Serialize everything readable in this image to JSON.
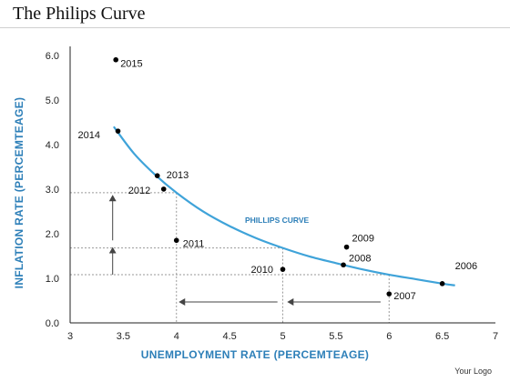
{
  "page": {
    "title": "The Philips Curve",
    "logo_text": "Your Logo"
  },
  "chart_data": {
    "type": "scatter",
    "title": "The Philips Curve",
    "xlabel": "UNEMPLOYMENT RATE (PERCEMTEAGE)",
    "ylabel": "INFLATION RATE (PERCEMTEAGE)",
    "xlim": [
      3,
      7
    ],
    "ylim": [
      0,
      6.2
    ],
    "x_ticks": [
      "3",
      "3.5",
      "4",
      "4.5",
      "5",
      "5.5",
      "6",
      "6.5",
      "7"
    ],
    "x_tick_values": [
      3,
      3.5,
      4,
      4.5,
      5,
      5.5,
      6,
      6.5,
      7
    ],
    "y_ticks": [
      "0.0",
      "1.0",
      "2.0",
      "3.0",
      "4.0",
      "5.0",
      "6.0"
    ],
    "y_tick_values": [
      0,
      1,
      2,
      3,
      4,
      5,
      6
    ],
    "grid": false,
    "points": [
      {
        "label": "2015",
        "x": 3.43,
        "y": 5.9
      },
      {
        "label": "2014",
        "x": 3.45,
        "y": 4.3
      },
      {
        "label": "2013",
        "x": 3.82,
        "y": 3.3
      },
      {
        "label": "2012",
        "x": 3.88,
        "y": 3.0
      },
      {
        "label": "2011",
        "x": 4.0,
        "y": 1.85
      },
      {
        "label": "2010",
        "x": 5.0,
        "y": 1.2
      },
      {
        "label": "2009",
        "x": 5.6,
        "y": 1.7
      },
      {
        "label": "2008",
        "x": 5.57,
        "y": 1.3
      },
      {
        "label": "2007",
        "x": 6.0,
        "y": 0.65
      },
      {
        "label": "2006",
        "x": 6.5,
        "y": 0.88
      }
    ],
    "curve": {
      "name": "PHILLIPS CURVE",
      "color": "#3fa3d9",
      "points": [
        [
          3.41,
          4.4
        ],
        [
          3.6,
          3.8
        ],
        [
          3.8,
          3.32
        ],
        [
          4.0,
          2.92
        ],
        [
          4.25,
          2.5
        ],
        [
          4.5,
          2.17
        ],
        [
          4.75,
          1.9
        ],
        [
          5.0,
          1.68
        ],
        [
          5.25,
          1.49
        ],
        [
          5.5,
          1.34
        ],
        [
          5.75,
          1.2
        ],
        [
          6.0,
          1.08
        ],
        [
          6.25,
          0.98
        ],
        [
          6.5,
          0.88
        ],
        [
          6.62,
          0.84
        ]
      ]
    },
    "guides": {
      "horizontal_levels": [
        2.92,
        1.68,
        1.08
      ],
      "vertical_levels": [
        4.0,
        5.0,
        6.0
      ]
    },
    "arrows": [
      {
        "direction": "up",
        "x": 3.4,
        "from": 1.08,
        "to": 1.68
      },
      {
        "direction": "up",
        "x": 3.4,
        "from": 1.85,
        "to": 2.85
      },
      {
        "direction": "left",
        "y": 0.47,
        "from": 5.92,
        "to": 5.05
      },
      {
        "direction": "left",
        "y": 0.47,
        "from": 4.95,
        "to": 4.03
      }
    ],
    "colors": {
      "axis_title": "#2d7fb8",
      "curve": "#3fa3d9",
      "points": "#000000",
      "guide_lines": "#9a9a9a",
      "axis": "#222222"
    }
  }
}
